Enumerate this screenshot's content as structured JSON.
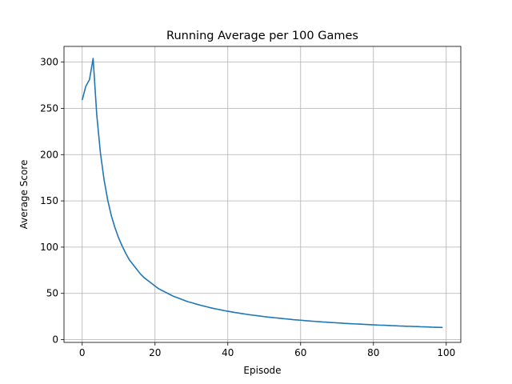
{
  "chart_data": {
    "type": "line",
    "title": "Running Average per 100 Games",
    "xlabel": "Episode",
    "ylabel": "Average Score",
    "xlim": [
      -5,
      104
    ],
    "ylim": [
      -3,
      317
    ],
    "xticks": [
      0,
      20,
      40,
      60,
      80,
      100
    ],
    "yticks": [
      0,
      50,
      100,
      150,
      200,
      250,
      300
    ],
    "grid": true,
    "line_color": "#1f77b4",
    "series": [
      {
        "x": [
          0,
          1,
          2,
          3,
          4,
          5,
          6,
          7,
          8,
          9,
          10,
          11,
          12,
          13,
          14,
          15,
          16,
          17,
          18,
          19,
          20,
          21,
          22,
          23,
          24,
          25,
          26,
          27,
          28,
          29,
          30,
          31,
          32,
          33,
          34,
          35,
          36,
          37,
          38,
          39,
          40,
          41,
          42,
          43,
          44,
          45,
          46,
          47,
          48,
          49,
          50,
          51,
          52,
          53,
          54,
          55,
          56,
          57,
          58,
          59,
          60,
          61,
          62,
          63,
          64,
          65,
          66,
          67,
          68,
          69,
          70,
          71,
          72,
          73,
          74,
          75,
          76,
          77,
          78,
          79,
          80,
          81,
          82,
          83,
          84,
          85,
          86,
          87,
          88,
          89,
          90,
          91,
          92,
          93,
          94,
          95,
          96,
          97,
          98,
          99
        ],
        "values": [
          259,
          274,
          281,
          304,
          243,
          202,
          173,
          151,
          134,
          121,
          110,
          101,
          93,
          86,
          81,
          76,
          71,
          67,
          64,
          61,
          58,
          55,
          53,
          51,
          49,
          47,
          45.5,
          44,
          42.5,
          41,
          40,
          38.8,
          37.7,
          36.7,
          35.7,
          34.7,
          33.8,
          33,
          32.2,
          31.4,
          30.7,
          30,
          29.3,
          28.7,
          28.1,
          27.5,
          26.9,
          26.4,
          25.9,
          25.4,
          24.9,
          24.4,
          24,
          23.6,
          23.2,
          22.8,
          22.4,
          22,
          21.6,
          21.3,
          21,
          20.6,
          20.3,
          20,
          19.7,
          19.4,
          19.1,
          18.9,
          18.6,
          18.4,
          18.1,
          17.9,
          17.6,
          17.4,
          17.2,
          17,
          16.8,
          16.6,
          16.4,
          16.2,
          16,
          15.8,
          15.6,
          15.5,
          15.3,
          15.1,
          15,
          14.8,
          14.7,
          14.5,
          14.4,
          14.2,
          14.1,
          13.9,
          13.8,
          13.7,
          13.5,
          13.4,
          13.3,
          13.2
        ]
      }
    ]
  }
}
